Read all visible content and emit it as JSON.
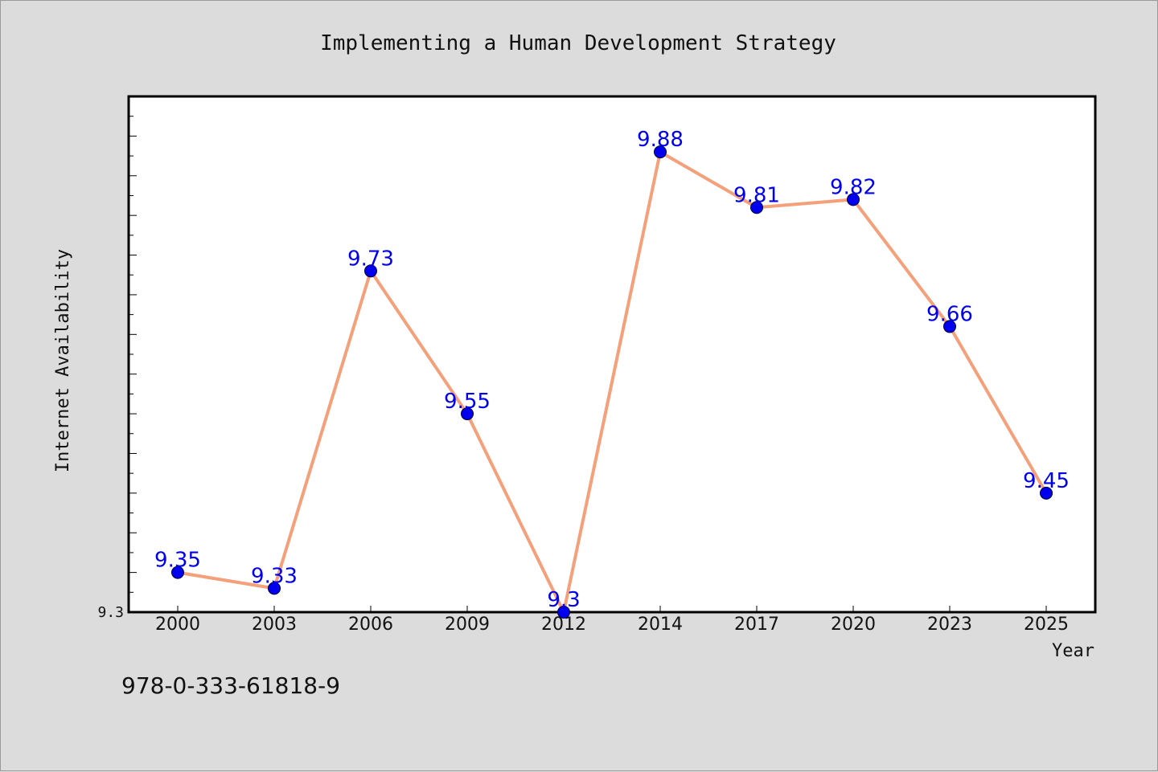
{
  "colors": {
    "background": "#dcdcdc",
    "plot_background": "#ffffff",
    "line": "#f4a07a",
    "marker": "#0000ee",
    "data_label": "#0000ee"
  },
  "footer_text": "978-0-333-61818-9",
  "chart_data": {
    "type": "line",
    "title": "Implementing a Human Development Strategy",
    "xlabel": "Year",
    "ylabel": "Internet Availability",
    "categories": [
      "2000",
      "2003",
      "2006",
      "2009",
      "2012",
      "2014",
      "2017",
      "2020",
      "2023",
      "2025"
    ],
    "series": [
      {
        "values": [
          9.35,
          9.33,
          9.73,
          9.55,
          9.3,
          9.88,
          9.81,
          9.82,
          9.66,
          9.45
        ],
        "labels": [
          "9.35",
          "9.33",
          "9.73",
          "9.55",
          "9.3",
          "9.88",
          "9.81",
          "9.82",
          "9.66",
          "9.45"
        ]
      }
    ],
    "ylim": [
      9.3,
      9.95
    ],
    "y_tick_labels": [
      "9.3"
    ],
    "grid": false,
    "legend": "none"
  }
}
